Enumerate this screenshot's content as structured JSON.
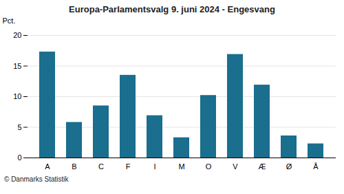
{
  "chart_data": {
    "type": "bar",
    "title": "Europa-Parlamentsvalg 9. juni 2024 - Engesvang",
    "ylabel": "Pct.",
    "caption": "© Danmarks Statistik",
    "categories": [
      "A",
      "B",
      "C",
      "F",
      "I",
      "M",
      "O",
      "V",
      "Æ",
      "Ø",
      "Å"
    ],
    "values": [
      17.3,
      5.8,
      8.5,
      13.5,
      6.9,
      3.3,
      10.2,
      16.9,
      11.9,
      3.6,
      2.3
    ],
    "color": "#1a6e8e",
    "ylim": [
      0,
      20
    ],
    "yticks": [
      0,
      5,
      10,
      15,
      20
    ],
    "grid": true
  }
}
